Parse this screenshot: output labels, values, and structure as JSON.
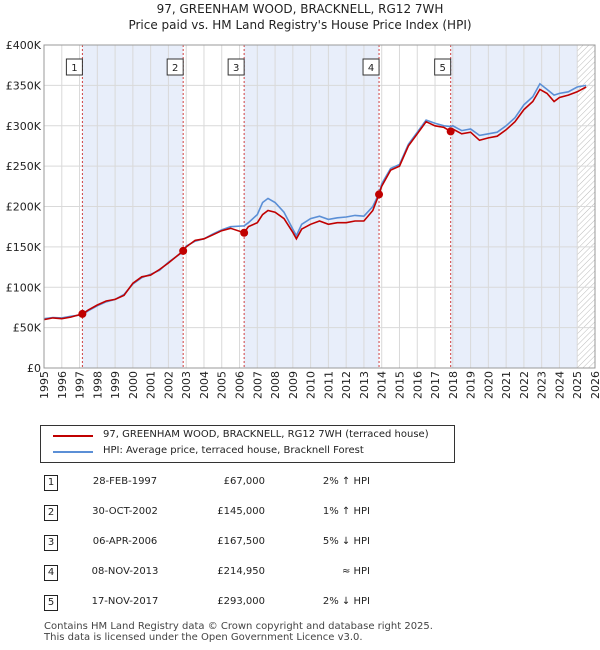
{
  "title_line1": "97, GREENHAM WOOD, BRACKNELL, RG12 7WH",
  "title_line2": "Price paid vs. HM Land Registry's House Price Index (HPI)",
  "colors": {
    "price_line": "#c00000",
    "hpi_line": "#5b8fd6",
    "shade": "#e8eefa",
    "vline": "#d04040",
    "grid": "#d9d9d9",
    "axis_text": "#222222"
  },
  "chart_data": {
    "type": "line",
    "title": "Price paid vs. HM Land Registry's House Price Index (HPI)",
    "xlabel": "",
    "ylabel": "",
    "xlim": [
      1995,
      2026
    ],
    "ylim": [
      0,
      400000
    ],
    "y_ticks": [
      0,
      50000,
      100000,
      150000,
      200000,
      250000,
      300000,
      350000,
      400000
    ],
    "y_tick_labels": [
      "£0",
      "£50K",
      "£100K",
      "£150K",
      "£200K",
      "£250K",
      "£300K",
      "£350K",
      "£400K"
    ],
    "x_ticks": [
      1995,
      1996,
      1997,
      1998,
      1999,
      2000,
      2001,
      2002,
      2003,
      2004,
      2005,
      2006,
      2007,
      2008,
      2009,
      2010,
      2011,
      2012,
      2013,
      2014,
      2015,
      2016,
      2017,
      2018,
      2019,
      2020,
      2021,
      2022,
      2023,
      2024,
      2025,
      2026
    ],
    "grid": true,
    "shaded_regions": [
      [
        1997.16,
        2002.83
      ],
      [
        2006.26,
        2013.85
      ],
      [
        2017.88,
        2025.0
      ]
    ],
    "hatch_from": 2025.0,
    "series": [
      {
        "name": "97, GREENHAM WOOD, BRACKNELL, RG12 7WH (terraced house)",
        "x": [
          1995.0,
          1995.5,
          1996.0,
          1996.5,
          1997.16,
          1997.5,
          1998.0,
          1998.5,
          1999.0,
          1999.5,
          2000.0,
          2000.5,
          2001.0,
          2001.5,
          2002.0,
          2002.83,
          2003.0,
          2003.5,
          2004.0,
          2004.5,
          2005.0,
          2005.5,
          2006.26,
          2006.5,
          2007.0,
          2007.3,
          2007.6,
          2008.0,
          2008.5,
          2009.0,
          2009.2,
          2009.5,
          2010.0,
          2010.5,
          2011.0,
          2011.5,
          2012.0,
          2012.5,
          2013.0,
          2013.5,
          2013.85,
          2014.0,
          2014.5,
          2015.0,
          2015.5,
          2016.0,
          2016.5,
          2017.0,
          2017.5,
          2017.88,
          2018.0,
          2018.5,
          2019.0,
          2019.5,
          2020.0,
          2020.5,
          2021.0,
          2021.5,
          2022.0,
          2022.5,
          2022.9,
          2023.3,
          2023.7,
          2024.0,
          2024.5,
          2025.0,
          2025.5
        ],
        "values": [
          60000,
          62000,
          61000,
          63000,
          67000,
          72000,
          78000,
          83000,
          85000,
          90000,
          105000,
          113000,
          115000,
          122000,
          130000,
          145000,
          150000,
          158000,
          160000,
          165000,
          170000,
          173000,
          167500,
          175000,
          180000,
          190000,
          195000,
          193000,
          185000,
          168000,
          160000,
          172000,
          178000,
          182000,
          178000,
          180000,
          180000,
          182000,
          182000,
          195000,
          214950,
          225000,
          245000,
          250000,
          275000,
          290000,
          305000,
          300000,
          298000,
          293000,
          296000,
          290000,
          292000,
          282000,
          285000,
          287000,
          295000,
          305000,
          320000,
          330000,
          345000,
          340000,
          330000,
          335000,
          338000,
          342000,
          348000
        ]
      },
      {
        "name": "HPI: Average price, terraced house, Bracknell Forest",
        "x": [
          1995.0,
          1995.5,
          1996.0,
          1996.5,
          1997.16,
          1997.5,
          1998.0,
          1998.5,
          1999.0,
          1999.5,
          2000.0,
          2000.5,
          2001.0,
          2001.5,
          2002.0,
          2002.83,
          2003.0,
          2003.5,
          2004.0,
          2004.5,
          2005.0,
          2005.5,
          2006.26,
          2006.5,
          2007.0,
          2007.3,
          2007.6,
          2008.0,
          2008.5,
          2009.0,
          2009.2,
          2009.5,
          2010.0,
          2010.5,
          2011.0,
          2011.5,
          2012.0,
          2012.5,
          2013.0,
          2013.5,
          2013.85,
          2014.0,
          2014.5,
          2015.0,
          2015.5,
          2016.0,
          2016.5,
          2017.0,
          2017.5,
          2017.88,
          2018.0,
          2018.5,
          2019.0,
          2019.5,
          2020.0,
          2020.5,
          2021.0,
          2021.5,
          2022.0,
          2022.5,
          2022.9,
          2023.3,
          2023.7,
          2024.0,
          2024.5,
          2025.0,
          2025.5
        ],
        "values": [
          61000,
          62500,
          62000,
          64000,
          66000,
          71000,
          77000,
          82000,
          85000,
          91000,
          104000,
          112000,
          116000,
          121000,
          131000,
          144000,
          151000,
          157000,
          160000,
          166000,
          171000,
          175000,
          176000,
          180000,
          190000,
          205000,
          210000,
          205000,
          193000,
          172000,
          164000,
          178000,
          185000,
          188000,
          184000,
          186000,
          187000,
          189000,
          188000,
          200000,
          216000,
          228000,
          247000,
          252000,
          277000,
          292000,
          307000,
          303000,
          300000,
          299000,
          300000,
          294000,
          296000,
          288000,
          290000,
          292000,
          300000,
          310000,
          326000,
          336000,
          352000,
          345000,
          338000,
          340000,
          342000,
          348000,
          350000
        ]
      }
    ],
    "markers": [
      {
        "label": "1",
        "x": 1997.16,
        "y": 67000
      },
      {
        "label": "2",
        "x": 2002.83,
        "y": 145000
      },
      {
        "label": "3",
        "x": 2006.26,
        "y": 167500
      },
      {
        "label": "4",
        "x": 2013.85,
        "y": 214950
      },
      {
        "label": "5",
        "x": 2017.88,
        "y": 293000
      }
    ]
  },
  "legend": {
    "price_label": "97, GREENHAM WOOD, BRACKNELL, RG12 7WH (terraced house)",
    "hpi_label": "HPI: Average price, terraced house, Bracknell Forest"
  },
  "sales": [
    {
      "num": "1",
      "date": "28-FEB-1997",
      "price": "£67,000",
      "hpi": "2% ↑ HPI"
    },
    {
      "num": "2",
      "date": "30-OCT-2002",
      "price": "£145,000",
      "hpi": "1% ↑ HPI"
    },
    {
      "num": "3",
      "date": "06-APR-2006",
      "price": "£167,500",
      "hpi": "5% ↓ HPI"
    },
    {
      "num": "4",
      "date": "08-NOV-2013",
      "price": "£214,950",
      "hpi": "≈ HPI"
    },
    {
      "num": "5",
      "date": "17-NOV-2017",
      "price": "£293,000",
      "hpi": "2% ↓ HPI"
    }
  ],
  "footer_line1": "Contains HM Land Registry data © Crown copyright and database right 2025.",
  "footer_line2": "This data is licensed under the Open Government Licence v3.0."
}
